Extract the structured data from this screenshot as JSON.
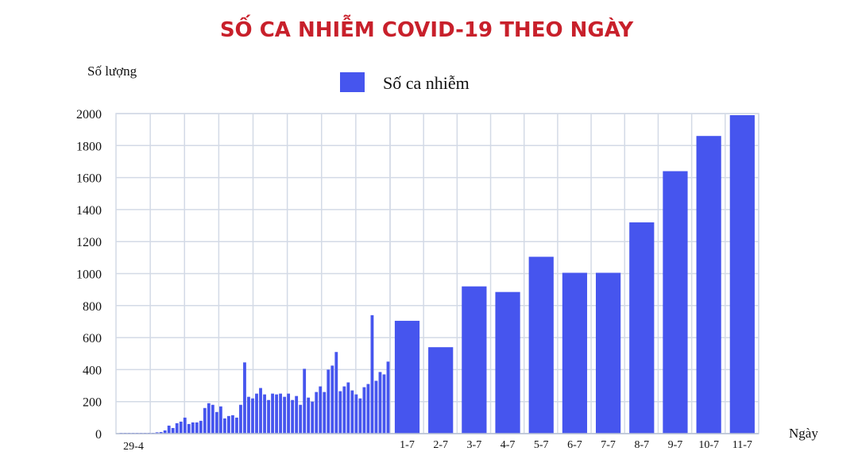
{
  "chart_data": {
    "type": "bar",
    "title": "SỐ CA NHIỄM COVID-19 THEO NGÀY",
    "ylabel": "Số lượng",
    "xlabel": "Ngày",
    "ylim": [
      0,
      2000
    ],
    "yticks": [
      0,
      200,
      400,
      600,
      800,
      1000,
      1200,
      1400,
      1600,
      1800,
      2000
    ],
    "grid": true,
    "legend": {
      "position": "top-center",
      "label": "Số ca nhiễm"
    },
    "color": "#4655ee",
    "early_series": {
      "name": "Số ca nhiễm",
      "first_label": "29-4",
      "values": [
        5,
        5,
        5,
        5,
        5,
        5,
        5,
        5,
        5,
        8,
        10,
        20,
        50,
        35,
        65,
        75,
        100,
        60,
        70,
        70,
        80,
        160,
        190,
        180,
        135,
        170,
        95,
        110,
        115,
        100,
        180,
        445,
        230,
        220,
        250,
        285,
        245,
        210,
        250,
        245,
        250,
        230,
        250,
        210,
        235,
        180,
        405,
        225,
        200,
        260,
        295,
        260,
        400,
        425,
        510,
        265,
        295,
        320,
        270,
        245,
        220,
        290,
        310,
        740,
        330,
        385,
        370,
        450
      ]
    },
    "categories": [
      "1-7",
      "2-7",
      "3-7",
      "4-7",
      "5-7",
      "6-7",
      "7-7",
      "8-7",
      "9-7",
      "10-7",
      "11-7"
    ],
    "values": [
      705,
      540,
      920,
      885,
      1105,
      1005,
      1005,
      1320,
      1640,
      1860,
      1990
    ]
  }
}
